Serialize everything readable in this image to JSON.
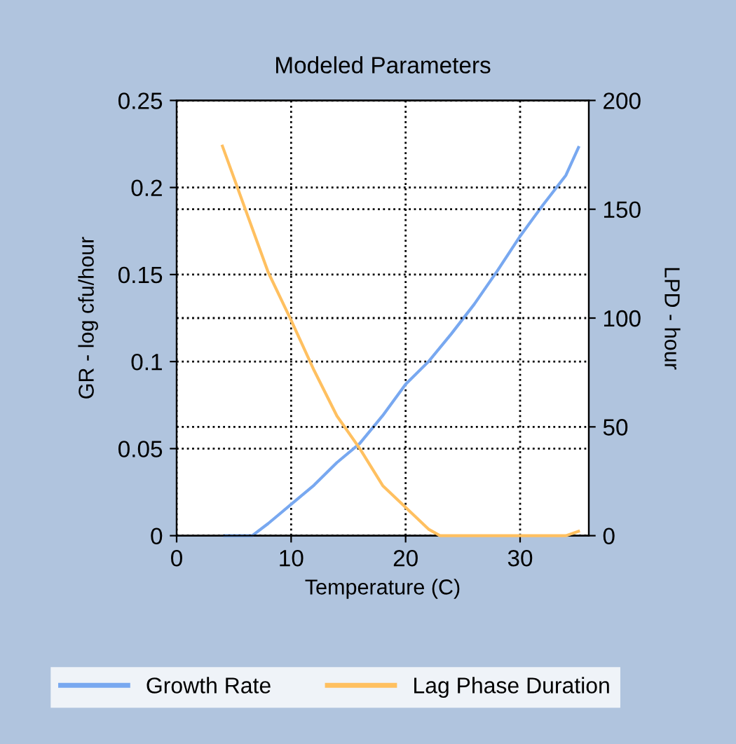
{
  "chart_data": {
    "type": "line",
    "title": "Modeled Parameters",
    "xlabel": "Temperature (C)",
    "ylabel": "GR - log cfu/hour",
    "y2label": "LPD - hour",
    "xlim": [
      0,
      36
    ],
    "xticks": [
      0,
      10,
      20,
      30
    ],
    "ylim": [
      0,
      0.25
    ],
    "yticks": [
      0,
      0.05,
      0.1,
      0.15,
      0.2,
      0.25
    ],
    "y2lim": [
      0,
      200
    ],
    "y2ticks": [
      0,
      50,
      100,
      150,
      200
    ],
    "grid": true,
    "legend": "bottom",
    "series": [
      {
        "name": "Growth Rate",
        "color": "#78a8f0",
        "x": [
          4.2,
          6.6,
          8,
          10,
          12,
          14,
          16,
          18,
          20,
          22,
          24,
          26,
          28,
          30,
          32,
          34,
          35.1
        ],
        "values": [
          0,
          0,
          0.007,
          0.018,
          0.029,
          0.042,
          0.053,
          0.069,
          0.087,
          0.1,
          0.116,
          0.133,
          0.152,
          0.172,
          0.19,
          0.207,
          0.223
        ]
      },
      {
        "name": "Lag Phase Duration",
        "color": "#ffc060",
        "axis": "y2",
        "x": [
          4,
          6,
          8,
          10,
          12,
          14,
          16,
          18,
          20,
          22,
          23,
          26,
          30,
          34,
          35.1
        ],
        "values": [
          179,
          150,
          121,
          99,
          76,
          55,
          40,
          23,
          13,
          3,
          0,
          0,
          0,
          0,
          2
        ]
      }
    ]
  }
}
